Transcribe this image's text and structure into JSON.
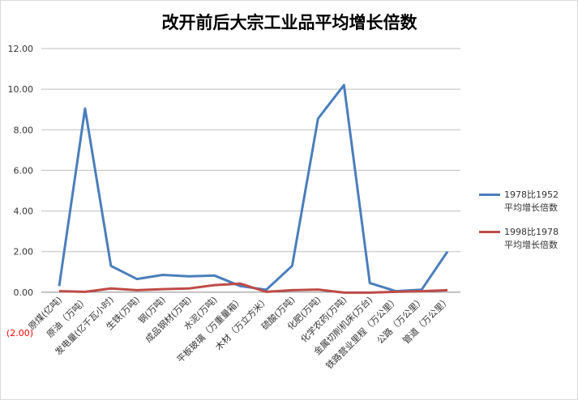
{
  "chart_data": {
    "type": "line",
    "title": "改开前后大宗工业品平均增长倍数",
    "categories": [
      "原煤(亿吨)",
      "原油（万吨）",
      "发电量(亿千瓦小时)",
      "生铁(万吨)",
      "钢(万吨)",
      "成品钢材(万吨)",
      "水泥(万吨)",
      "平板玻璃（万重量箱）",
      "木材（万立方米）",
      "硫酸(万吨)",
      "化肥(万吨)",
      "化学农药(万吨)",
      "金属切削机床(万台)",
      "铁路营业里程（万公里）",
      "公路（万公里）",
      "管道（万公里）"
    ],
    "series": [
      {
        "name": "1978比1952\n平均增长倍数",
        "color": "#4a7ebb",
        "values": [
          0.3,
          9.05,
          1.3,
          0.65,
          0.85,
          0.78,
          0.82,
          0.3,
          0.12,
          1.3,
          8.55,
          10.2,
          0.45,
          0.05,
          0.12,
          2.0
        ]
      },
      {
        "name": "1998比1978\n平均增长倍数",
        "color": "#be4b48",
        "values": [
          0.05,
          0.02,
          0.18,
          0.1,
          0.15,
          0.18,
          0.35,
          0.42,
          0.02,
          0.1,
          0.13,
          -0.02,
          -0.02,
          0.02,
          0.05,
          0.1
        ]
      }
    ],
    "ylim": [
      -2,
      12
    ],
    "yticks": [
      {
        "value": -2,
        "label": "(2.00)"
      },
      {
        "value": 0,
        "label": "0.00"
      },
      {
        "value": 2,
        "label": "2.00"
      },
      {
        "value": 4,
        "label": "4.00"
      },
      {
        "value": 6,
        "label": "6.00"
      },
      {
        "value": 8,
        "label": "8.00"
      },
      {
        "value": 10,
        "label": "10.00"
      },
      {
        "value": 12,
        "label": "12.00"
      }
    ],
    "grid": true,
    "legend": "right"
  }
}
